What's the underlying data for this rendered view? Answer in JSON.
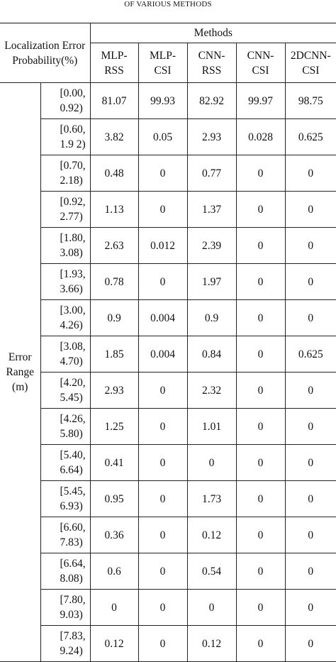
{
  "caption": "OF VARIOUS METHODS",
  "header": {
    "corner_line1": "Localization Error",
    "corner_line2": "Probability(%)",
    "group": "Methods",
    "methods": [
      {
        "line1": "MLP-",
        "line2": "RSS"
      },
      {
        "line1": "MLP-",
        "line2": "CSI"
      },
      {
        "line1": "CNN-",
        "line2": "RSS"
      },
      {
        "line1": "CNN-",
        "line2": "CSI"
      },
      {
        "line1": "2DCNN-",
        "line2": "CSI"
      }
    ]
  },
  "row_group": {
    "line1": "Error",
    "line2": "Range",
    "line3": "(m)"
  },
  "rows": [
    {
      "range1": "[0.00,",
      "range2": "0.92)",
      "values": [
        "81.07",
        "99.93",
        "82.92",
        "99.97",
        "98.75"
      ]
    },
    {
      "range1": "[0.60,",
      "range2": "1.9 2)",
      "values": [
        "3.82",
        "0.05",
        "2.93",
        "0.028",
        "0.625"
      ]
    },
    {
      "range1": "[0.70,",
      "range2": "2.18)",
      "values": [
        "0.48",
        "0",
        "0.77",
        "0",
        "0"
      ]
    },
    {
      "range1": "[0.92,",
      "range2": "2.77)",
      "values": [
        "1.13",
        "0",
        "1.37",
        "0",
        "0"
      ]
    },
    {
      "range1": "[1.80,",
      "range2": "3.08)",
      "values": [
        "2.63",
        "0.012",
        "2.39",
        "0",
        "0"
      ]
    },
    {
      "range1": "[1.93,",
      "range2": "3.66)",
      "values": [
        "0.78",
        "0",
        "1.97",
        "0",
        "0"
      ]
    },
    {
      "range1": "[3.00,",
      "range2": "4.26)",
      "values": [
        "0.9",
        "0.004",
        "0.9",
        "0",
        "0"
      ]
    },
    {
      "range1": "[3.08,",
      "range2": "4.70)",
      "values": [
        "1.85",
        "0.004",
        "0.84",
        "0",
        "0.625"
      ]
    },
    {
      "range1": "[4.20,",
      "range2": "5.45)",
      "values": [
        "2.93",
        "0",
        "2.32",
        "0",
        "0"
      ]
    },
    {
      "range1": "[4.26,",
      "range2": "5.80)",
      "values": [
        "1.25",
        "0",
        "1.01",
        "0",
        "0"
      ]
    },
    {
      "range1": "[5.40,",
      "range2": "6.64)",
      "values": [
        "0.41",
        "0",
        "0",
        "0",
        "0"
      ]
    },
    {
      "range1": "[5.45,",
      "range2": "6.93)",
      "values": [
        "0.95",
        "0",
        "1.73",
        "0",
        "0"
      ]
    },
    {
      "range1": "[6.60,",
      "range2": "7.83)",
      "values": [
        "0.36",
        "0",
        "0.12",
        "0",
        "0"
      ]
    },
    {
      "range1": "[6.64,",
      "range2": "8.08)",
      "values": [
        "0.6",
        "0",
        "0.54",
        "0",
        "0"
      ]
    },
    {
      "range1": "[7.80,",
      "range2": "9.03)",
      "values": [
        "0",
        "0",
        "0",
        "0",
        "0"
      ]
    },
    {
      "range1": "[7.83,",
      "range2": "9.24)",
      "values": [
        "0.12",
        "0",
        "0.12",
        "0",
        "0"
      ]
    }
  ]
}
